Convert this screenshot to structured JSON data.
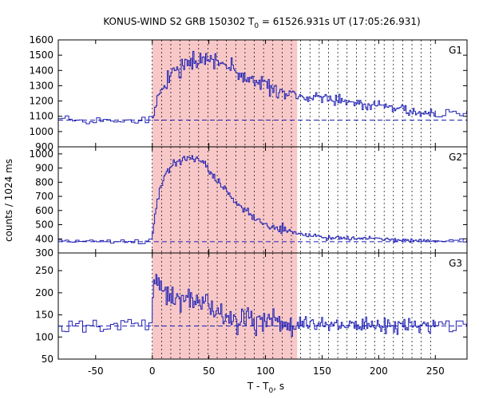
{
  "chart_data": {
    "type": "line",
    "title": {
      "main": "KONUS-WIND S2 GRB 150302 T",
      "sub": "0",
      "rest": " = 61526.931s UT (17:05:26.931)"
    },
    "xlabel": {
      "main": "T - T",
      "sub": "0",
      "rest": ", s"
    },
    "ylabel": "counts / 1024 ms",
    "xlim": [
      -83,
      278
    ],
    "xticks": [
      -50,
      0,
      50,
      100,
      150,
      200,
      250
    ],
    "shade_interval": [
      0,
      128
    ],
    "colors": {
      "line": "#1f1fb4",
      "shade": "#f8c8c8",
      "background": "#ffffff"
    },
    "panels": [
      {
        "name": "G1",
        "ylim": [
          900,
          1600
        ],
        "yticks": [
          900,
          1000,
          1100,
          1200,
          1300,
          1400,
          1500,
          1600
        ],
        "background": 1075,
        "profile": [
          [
            -83,
            1075
          ],
          [
            -10,
            1078
          ],
          [
            0,
            1085
          ],
          [
            2,
            1160
          ],
          [
            5,
            1210
          ],
          [
            10,
            1270
          ],
          [
            15,
            1360
          ],
          [
            20,
            1400
          ],
          [
            25,
            1420
          ],
          [
            30,
            1435
          ],
          [
            38,
            1440
          ],
          [
            45,
            1460
          ],
          [
            50,
            1475
          ],
          [
            55,
            1470
          ],
          [
            60,
            1455
          ],
          [
            65,
            1445
          ],
          [
            70,
            1425
          ],
          [
            75,
            1390
          ],
          [
            80,
            1360
          ],
          [
            90,
            1330
          ],
          [
            100,
            1310
          ],
          [
            110,
            1270
          ],
          [
            120,
            1250
          ],
          [
            130,
            1240
          ],
          [
            140,
            1225
          ],
          [
            150,
            1220
          ],
          [
            160,
            1210
          ],
          [
            170,
            1200
          ],
          [
            180,
            1185
          ],
          [
            190,
            1175
          ],
          [
            200,
            1170
          ],
          [
            210,
            1160
          ],
          [
            220,
            1140
          ],
          [
            230,
            1130
          ],
          [
            240,
            1120
          ],
          [
            248,
            1115
          ]
        ],
        "noise": [
          16,
          28
        ]
      },
      {
        "name": "G2",
        "ylim": [
          300,
          1050
        ],
        "yticks": [
          300,
          400,
          500,
          600,
          700,
          800,
          900,
          1000
        ],
        "background": 380,
        "profile": [
          [
            -83,
            385
          ],
          [
            -10,
            380
          ],
          [
            -1,
            385
          ],
          [
            0,
            430
          ],
          [
            3,
            600
          ],
          [
            6,
            720
          ],
          [
            10,
            830
          ],
          [
            15,
            900
          ],
          [
            20,
            940
          ],
          [
            25,
            955
          ],
          [
            30,
            965
          ],
          [
            35,
            970
          ],
          [
            40,
            965
          ],
          [
            45,
            935
          ],
          [
            50,
            890
          ],
          [
            55,
            840
          ],
          [
            60,
            790
          ],
          [
            65,
            745
          ],
          [
            70,
            690
          ],
          [
            75,
            650
          ],
          [
            80,
            620
          ],
          [
            90,
            555
          ],
          [
            100,
            505
          ],
          [
            110,
            480
          ],
          [
            120,
            460
          ],
          [
            130,
            440
          ],
          [
            140,
            425
          ],
          [
            150,
            415
          ],
          [
            160,
            410
          ],
          [
            170,
            405
          ],
          [
            180,
            400
          ],
          [
            190,
            400
          ],
          [
            200,
            400
          ],
          [
            210,
            395
          ],
          [
            220,
            390
          ],
          [
            230,
            390
          ],
          [
            240,
            385
          ],
          [
            248,
            385
          ]
        ],
        "noise": [
          7,
          14
        ]
      },
      {
        "name": "G3",
        "ylim": [
          50,
          290
        ],
        "yticks": [
          50,
          100,
          150,
          200,
          250
        ],
        "background": 125,
        "profile": [
          [
            -83,
            128
          ],
          [
            -10,
            125
          ],
          [
            -2,
            125
          ],
          [
            0,
            150
          ],
          [
            2,
            235
          ],
          [
            5,
            225
          ],
          [
            8,
            215
          ],
          [
            12,
            200
          ],
          [
            18,
            190
          ],
          [
            25,
            185
          ],
          [
            35,
            178
          ],
          [
            45,
            172
          ],
          [
            50,
            168
          ],
          [
            55,
            160
          ],
          [
            60,
            152
          ],
          [
            70,
            145
          ],
          [
            80,
            140
          ],
          [
            100,
            135
          ],
          [
            120,
            130
          ],
          [
            140,
            128
          ],
          [
            160,
            127
          ],
          [
            180,
            127
          ],
          [
            200,
            126
          ],
          [
            220,
            126
          ],
          [
            240,
            125
          ],
          [
            248,
            128
          ]
        ],
        "noise": [
          8,
          15
        ]
      }
    ]
  }
}
